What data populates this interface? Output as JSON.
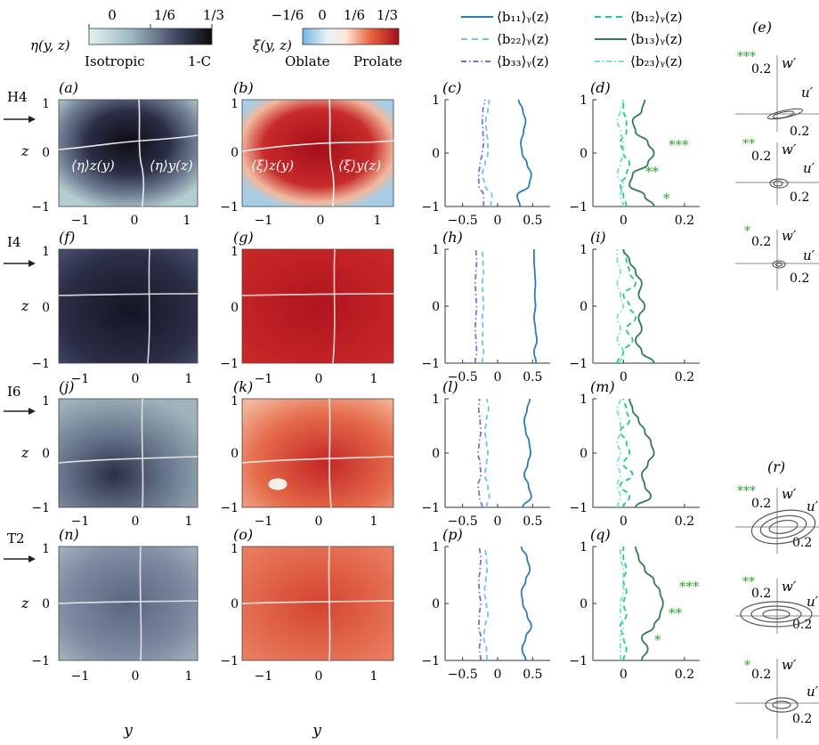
{
  "colorbars": {
    "eta": {
      "label": "η(y, z)",
      "ticks": [
        "0",
        "1/6",
        "1/3"
      ],
      "left_text": "Isotropic",
      "right_text": "1-C"
    },
    "xi": {
      "label": "ξ(y, z)",
      "ticks": [
        "−1/6",
        "0",
        "1/6",
        "1/3"
      ],
      "left_text": "Oblate",
      "right_text": "Prolate"
    }
  },
  "legend_left": [
    {
      "text": "⟨b₁₁⟩ᵧ(z)",
      "color": "#2b7bba",
      "dash": "solid"
    },
    {
      "text": "⟨b₂₂⟩ᵧ(z)",
      "color": "#6ec3ee",
      "dash": "dashed"
    },
    {
      "text": "⟨b₃₃⟩ᵧ(z)",
      "color": "#6f73d9",
      "dash": "dashdot"
    }
  ],
  "legend_right": [
    {
      "text": "⟨b₁₂⟩ᵧ(z)",
      "color": "#20c98a",
      "dash": "dashed"
    },
    {
      "text": "⟨b₁₃⟩ᵧ(z)",
      "color": "#2f7d4f",
      "dash": "solid"
    },
    {
      "text": "⟨b₂₃⟩ᵧ(z)",
      "color": "#6ee8b4",
      "dash": "dashdot"
    }
  ],
  "rows": [
    {
      "name": "H4",
      "color": "#2a9d3b",
      "panels": [
        "(a)",
        "(b)",
        "(c)",
        "(d)"
      ]
    },
    {
      "name": "I4",
      "color": "#e8a33a",
      "panels": [
        "(f)",
        "(g)",
        "(h)",
        "(i)"
      ]
    },
    {
      "name": "I6",
      "color": "#e8a33a",
      "panels": [
        "(j)",
        "(k)",
        "(l)",
        "(m)"
      ]
    },
    {
      "name": "T2",
      "color": "#e0231f",
      "panels": [
        "(n)",
        "(o)",
        "(p)",
        "(q)"
      ]
    }
  ],
  "axes": {
    "map_xticks": [
      "−1",
      "0",
      "1"
    ],
    "map_yticks": [
      "1",
      "0",
      "−1"
    ],
    "b_diag_xticks": [
      "−0.5",
      "0",
      "0.5"
    ],
    "b_off_xticks": [
      "0",
      "0.2"
    ],
    "z_label": "z",
    "y_label": "y"
  },
  "inline_labels": {
    "eta_z": "⟨η⟩z(y)",
    "eta_y": "⟨η⟩y(z)",
    "xi_z": "⟨ξ⟩z(y)",
    "xi_y": "⟨ξ⟩y(z)"
  },
  "stars": [
    "***",
    "**",
    "*"
  ],
  "quadrant": {
    "e_label": "(e)",
    "r_label": "(r)",
    "w_label": "w′",
    "u_label": "u′",
    "tick": "0.2"
  },
  "chart_data": [
    {
      "type": "line",
      "panel": "(c)",
      "xlim": [
        -0.75,
        0.75
      ],
      "ylim": [
        -1,
        1
      ],
      "z": [
        -1,
        -0.8,
        -0.6,
        -0.4,
        -0.2,
        0,
        0.2,
        0.4,
        0.6,
        0.8,
        1
      ],
      "series": [
        {
          "name": "⟨b₁₁⟩ᵧ(z)",
          "values": [
            0.32,
            0.28,
            0.45,
            0.48,
            0.42,
            0.35,
            0.33,
            0.37,
            0.4,
            0.36,
            0.3
          ]
        },
        {
          "name": "⟨b₂₂⟩ᵧ(z)",
          "values": [
            -0.1,
            -0.08,
            -0.18,
            -0.22,
            -0.18,
            -0.14,
            -0.14,
            -0.16,
            -0.17,
            -0.14,
            -0.12
          ]
        },
        {
          "name": "⟨b₃₃⟩ᵧ(z)",
          "values": [
            -0.2,
            -0.2,
            -0.27,
            -0.27,
            -0.25,
            -0.22,
            -0.2,
            -0.21,
            -0.22,
            -0.21,
            -0.18
          ]
        }
      ]
    },
    {
      "type": "line",
      "panel": "(d)",
      "xlim": [
        -0.1,
        0.25
      ],
      "ylim": [
        -1,
        1
      ],
      "z": [
        -1,
        -0.8,
        -0.6,
        -0.4,
        -0.2,
        0,
        0.2,
        0.4,
        0.6,
        0.8,
        1
      ],
      "series": [
        {
          "name": "⟨b₁₂⟩ᵧ(z)",
          "values": [
            0.01,
            0.0,
            -0.01,
            0.01,
            0.02,
            0.0,
            -0.01,
            0.01,
            0.01,
            0.0,
            0.0
          ]
        },
        {
          "name": "⟨b₁₃⟩ᵧ(z)",
          "values": [
            0.1,
            0.07,
            0.02,
            0.03,
            0.08,
            0.1,
            0.08,
            0.04,
            0.03,
            0.06,
            0.07
          ]
        },
        {
          "name": "⟨b₂₃⟩ᵧ(z)",
          "values": [
            0.0,
            -0.01,
            0.0,
            -0.02,
            -0.01,
            0.0,
            0.0,
            -0.01,
            -0.02,
            -0.01,
            0.0
          ]
        }
      ]
    },
    {
      "type": "line",
      "panel": "(h)",
      "xlim": [
        -0.75,
        0.75
      ],
      "ylim": [
        -1,
        1
      ],
      "z": [
        -1,
        -0.8,
        -0.6,
        -0.4,
        -0.2,
        0,
        0.2,
        0.4,
        0.6,
        0.8,
        1
      ],
      "series": [
        {
          "name": "⟨b₁₁⟩ᵧ(z)",
          "values": [
            0.55,
            0.52,
            0.56,
            0.54,
            0.52,
            0.54,
            0.53,
            0.54,
            0.53,
            0.52,
            0.52
          ]
        },
        {
          "name": "⟨b₂₂⟩ᵧ(z)",
          "values": [
            -0.22,
            -0.2,
            -0.22,
            -0.21,
            -0.22,
            -0.2,
            -0.21,
            -0.22,
            -0.2,
            -0.21,
            -0.22
          ]
        },
        {
          "name": "⟨b₃₃⟩ᵧ(z)",
          "values": [
            -0.32,
            -0.3,
            -0.31,
            -0.32,
            -0.31,
            -0.3,
            -0.31,
            -0.32,
            -0.31,
            -0.3,
            -0.31
          ]
        }
      ]
    },
    {
      "type": "line",
      "panel": "(i)",
      "xlim": [
        -0.1,
        0.25
      ],
      "ylim": [
        -1,
        1
      ],
      "z": [
        -1,
        -0.8,
        -0.6,
        -0.4,
        -0.2,
        0,
        0.2,
        0.4,
        0.6,
        0.8,
        1
      ],
      "series": [
        {
          "name": "⟨b₁₂⟩ᵧ(z)",
          "values": [
            -0.02,
            0.0,
            0.03,
            0.01,
            0.04,
            0.02,
            0.0,
            0.04,
            0.02,
            0.01,
            0.0
          ]
        },
        {
          "name": "⟨b₁₃⟩ᵧ(z)",
          "values": [
            0.1,
            0.06,
            0.04,
            0.06,
            0.05,
            0.07,
            0.05,
            0.06,
            0.04,
            0.02,
            0.0
          ]
        },
        {
          "name": "⟨b₂₃⟩ᵧ(z)",
          "values": [
            -0.01,
            0.0,
            -0.02,
            -0.01,
            -0.02,
            0.0,
            -0.01,
            -0.02,
            -0.01,
            -0.02,
            -0.02
          ]
        }
      ]
    },
    {
      "type": "line",
      "panel": "(l)",
      "xlim": [
        -0.75,
        0.75
      ],
      "ylim": [
        -1,
        1
      ],
      "z": [
        -1,
        -0.8,
        -0.6,
        -0.4,
        -0.2,
        0,
        0.2,
        0.4,
        0.6,
        0.8,
        1
      ],
      "series": [
        {
          "name": "⟨b₁₁⟩ᵧ(z)",
          "values": [
            0.36,
            0.48,
            0.44,
            0.38,
            0.43,
            0.47,
            0.45,
            0.4,
            0.38,
            0.42,
            0.46
          ]
        },
        {
          "name": "⟨b₂₂⟩ᵧ(z)",
          "values": [
            -0.16,
            -0.12,
            -0.14,
            -0.18,
            -0.16,
            -0.14,
            -0.16,
            -0.18,
            -0.16,
            -0.13,
            -0.15
          ]
        },
        {
          "name": "⟨b₃₃⟩ᵧ(z)",
          "values": [
            -0.22,
            -0.26,
            -0.28,
            -0.24,
            -0.25,
            -0.28,
            -0.26,
            -0.24,
            -0.25,
            -0.27,
            -0.26
          ]
        }
      ]
    },
    {
      "type": "line",
      "panel": "(m)",
      "xlim": [
        -0.1,
        0.25
      ],
      "ylim": [
        -1,
        1
      ],
      "z": [
        -1,
        -0.8,
        -0.6,
        -0.4,
        -0.2,
        0,
        0.2,
        0.4,
        0.6,
        0.8,
        1
      ],
      "series": [
        {
          "name": "⟨b₁₂⟩ᵧ(z)",
          "values": [
            0.0,
            0.02,
            -0.01,
            0.03,
            0.0,
            0.02,
            0.01,
            -0.01,
            0.02,
            0.01,
            0.0
          ]
        },
        {
          "name": "⟨b₁₃⟩ᵧ(z)",
          "values": [
            0.04,
            0.09,
            0.07,
            0.06,
            0.08,
            0.1,
            0.09,
            0.07,
            0.05,
            0.03,
            0.02
          ]
        },
        {
          "name": "⟨b₂₃⟩ᵧ(z)",
          "values": [
            -0.02,
            -0.01,
            -0.02,
            -0.01,
            -0.02,
            -0.01,
            -0.02,
            -0.01,
            -0.01,
            -0.02,
            -0.01
          ]
        }
      ]
    },
    {
      "type": "line",
      "panel": "(p)",
      "xlim": [
        -0.75,
        0.75
      ],
      "ylim": [
        -1,
        1
      ],
      "z": [
        -1,
        -0.8,
        -0.6,
        -0.4,
        -0.2,
        0,
        0.2,
        0.4,
        0.6,
        0.8,
        1
      ],
      "series": [
        {
          "name": "⟨b₁₁⟩ᵧ(z)",
          "values": [
            0.4,
            0.35,
            0.4,
            0.48,
            0.42,
            0.36,
            0.34,
            0.4,
            0.46,
            0.42,
            0.34
          ]
        },
        {
          "name": "⟨b₂₂⟩ᵧ(z)",
          "values": [
            -0.15,
            -0.16,
            -0.2,
            -0.18,
            -0.14,
            -0.16,
            -0.19,
            -0.17,
            -0.15,
            -0.16,
            -0.18
          ]
        },
        {
          "name": "⟨b₃₃⟩ᵧ(z)",
          "values": [
            -0.24,
            -0.26,
            -0.24,
            -0.27,
            -0.26,
            -0.24,
            -0.26,
            -0.27,
            -0.25,
            -0.24,
            -0.26
          ]
        }
      ]
    },
    {
      "type": "line",
      "panel": "(q)",
      "xlim": [
        -0.1,
        0.25
      ],
      "ylim": [
        -1,
        1
      ],
      "z": [
        -1,
        -0.8,
        -0.6,
        -0.4,
        -0.2,
        0,
        0.2,
        0.4,
        0.6,
        0.8,
        1
      ],
      "series": [
        {
          "name": "⟨b₁₂⟩ᵧ(z)",
          "values": [
            0.0,
            0.01,
            0.0,
            -0.01,
            0.01,
            0.0,
            0.01,
            0.0,
            0.01,
            0.0,
            0.0
          ]
        },
        {
          "name": "⟨b₁₃⟩ᵧ(z)",
          "values": [
            0.06,
            0.08,
            0.06,
            0.1,
            0.12,
            0.13,
            0.12,
            0.1,
            0.07,
            0.05,
            0.04
          ]
        },
        {
          "name": "⟨b₂₃⟩ᵧ(z)",
          "values": [
            -0.01,
            -0.01,
            -0.01,
            0.0,
            -0.01,
            -0.01,
            0.0,
            0.0,
            0.0,
            -0.01,
            -0.01
          ]
        }
      ]
    }
  ]
}
